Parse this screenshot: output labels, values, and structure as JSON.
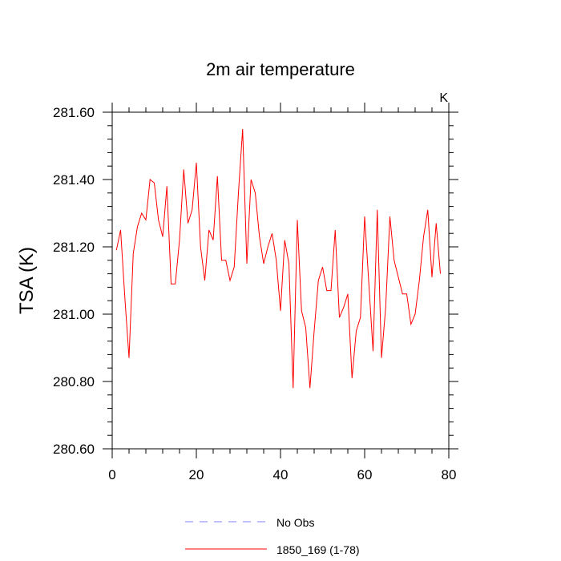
{
  "chart_data": {
    "type": "line",
    "title": "2m air temperature",
    "ylabel": "TSA  (K)",
    "units_label": "K",
    "xlabel": "",
    "xlim": [
      0,
      80
    ],
    "ylim": [
      280.6,
      281.6
    ],
    "x_ticks": [
      0,
      20,
      40,
      60,
      80
    ],
    "x_tick_labels": [
      "0",
      "20",
      "40",
      "60",
      "80"
    ],
    "y_ticks": [
      280.6,
      280.8,
      281.0,
      281.2,
      281.4,
      281.6
    ],
    "y_tick_labels": [
      "280.60",
      "280.80",
      "281.00",
      "281.20",
      "281.40",
      "281.60"
    ],
    "legend_position": "bottom",
    "legend": [
      {
        "label": "No Obs",
        "color": "#8080ff",
        "style": "dashed"
      },
      {
        "label": "1850_169 (1-78)",
        "color": "#ff0000",
        "style": "solid"
      }
    ],
    "series": [
      {
        "name": "1850_169 (1-78)",
        "color": "#ff0000",
        "x": [
          1,
          2,
          3,
          4,
          5,
          6,
          7,
          8,
          9,
          10,
          11,
          12,
          13,
          14,
          15,
          16,
          17,
          18,
          19,
          20,
          21,
          22,
          23,
          24,
          25,
          26,
          27,
          28,
          29,
          30,
          31,
          32,
          33,
          34,
          35,
          36,
          37,
          38,
          39,
          40,
          41,
          42,
          43,
          44,
          45,
          46,
          47,
          48,
          49,
          50,
          51,
          52,
          53,
          54,
          55,
          56,
          57,
          58,
          59,
          60,
          61,
          62,
          63,
          64,
          65,
          66,
          67,
          68,
          69,
          70,
          71,
          72,
          73,
          74,
          75,
          76,
          77,
          78
        ],
        "values": [
          281.19,
          281.25,
          281.05,
          280.87,
          281.18,
          281.26,
          281.3,
          281.28,
          281.4,
          281.39,
          281.28,
          281.23,
          281.38,
          281.09,
          281.09,
          281.22,
          281.43,
          281.27,
          281.31,
          281.45,
          281.2,
          281.1,
          281.25,
          281.22,
          281.41,
          281.16,
          281.16,
          281.1,
          281.14,
          281.36,
          281.55,
          281.15,
          281.4,
          281.36,
          281.23,
          281.15,
          281.2,
          281.24,
          281.16,
          281.01,
          281.22,
          281.15,
          280.78,
          281.28,
          281.01,
          280.96,
          280.78,
          280.95,
          281.1,
          281.14,
          281.07,
          281.07,
          281.25,
          280.99,
          281.02,
          281.06,
          280.81,
          280.95,
          280.99,
          281.29,
          281.09,
          280.89,
          281.31,
          280.87,
          281.02,
          281.29,
          281.16,
          281.11,
          281.06,
          281.06,
          280.97,
          281.0,
          281.1,
          281.23,
          281.31,
          281.11,
          281.27,
          281.12
        ]
      }
    ]
  }
}
